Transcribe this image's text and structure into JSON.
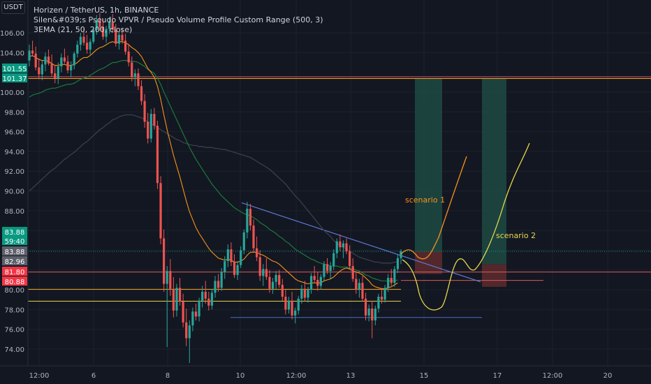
{
  "header": {
    "currency_button": "USDT",
    "title": "Horizen / TetherUS, 1h, BINANCE",
    "indicator_1": "Silen&#039;s Pseudo VPVR / Pseudo Volume Profile Custom Range (500, 3)",
    "indicator_2": "3EMA (21, 50, 200, close)"
  },
  "colors": {
    "background": "#131722",
    "grid": "#1e222d",
    "up": "#26a69a",
    "down": "#ef5350",
    "ema21": "#f7931a",
    "ema50": "#1b7a3a",
    "ema200": "#2a2e39",
    "trendline": "#5b7bd6",
    "support_blue": "#4a6fbf",
    "level_orange": "#f5a623",
    "level_yellow": "#e8d84a",
    "level_red": "#e05a5a",
    "zone_green": "#1e4a43",
    "zone_red": "#5a2a2e"
  },
  "chart_data": {
    "type": "candlestick",
    "symbol": "Horizen / TetherUS",
    "interval": "1h",
    "exchange": "BINANCE",
    "ylim": [
      72.5,
      108.0
    ],
    "y_ticks": [
      74.0,
      76.0,
      78.0,
      80.0,
      82.0,
      84.0,
      86.0,
      88.0,
      90.0,
      92.0,
      94.0,
      96.0,
      98.0,
      100.0,
      104.0,
      106.0
    ],
    "x_tick_labels": [
      "12:00",
      "6",
      "8",
      "10",
      "12:00",
      "13",
      "15",
      "17",
      "12:00",
      "20"
    ],
    "price_labels": [
      {
        "text": "101.55",
        "value": 101.55,
        "color": "#089981"
      },
      {
        "text": "101.37",
        "value": 101.37,
        "color": "#089981"
      },
      {
        "text": "83.88",
        "value": 83.88,
        "color": "#089981"
      },
      {
        "text": "59:40",
        "value": 83.0,
        "color": "#089981"
      },
      {
        "text": "83.88",
        "value": 83.88,
        "color": "#5d606b",
        "offset": 1
      },
      {
        "text": "82.96",
        "value": 82.96,
        "color": "#5d606b"
      },
      {
        "text": "81.80",
        "value": 81.8,
        "color": "#f23645"
      },
      {
        "text": "80.88",
        "value": 80.88,
        "color": "#f23645"
      }
    ],
    "horizontal_levels": [
      {
        "value": 101.55,
        "color": "#e05a5a"
      },
      {
        "value": 101.37,
        "color": "#f5a623"
      },
      {
        "value": 81.8,
        "color": "#e05a5a"
      },
      {
        "value": 80.05,
        "color": "#f5a623"
      },
      {
        "value": 78.85,
        "color": "#e8d84a"
      }
    ],
    "ohlc": [
      [
        103.2,
        104.8,
        102.6,
        104.2
      ],
      [
        104.2,
        105.2,
        103.6,
        103.9
      ],
      [
        103.9,
        104.6,
        102.2,
        102.5
      ],
      [
        102.5,
        103.4,
        101.3,
        101.8
      ],
      [
        101.8,
        103.2,
        101.2,
        102.8
      ],
      [
        102.8,
        104.0,
        102.1,
        103.6
      ],
      [
        103.6,
        104.3,
        102.7,
        102.9
      ],
      [
        102.9,
        103.8,
        101.6,
        101.9
      ],
      [
        101.9,
        102.7,
        100.9,
        101.4
      ],
      [
        101.4,
        103.0,
        100.8,
        102.6
      ],
      [
        102.6,
        103.9,
        102.0,
        103.5
      ],
      [
        103.5,
        104.4,
        102.9,
        103.1
      ],
      [
        103.1,
        103.7,
        101.9,
        102.2
      ],
      [
        102.2,
        103.1,
        101.5,
        102.7
      ],
      [
        102.7,
        104.1,
        102.3,
        103.9
      ],
      [
        103.9,
        105.2,
        103.5,
        104.8
      ],
      [
        104.8,
        106.0,
        104.2,
        105.6
      ],
      [
        105.6,
        106.4,
        104.7,
        105.0
      ],
      [
        105.0,
        105.8,
        103.9,
        104.3
      ],
      [
        104.3,
        105.4,
        103.8,
        105.1
      ],
      [
        105.1,
        106.6,
        104.9,
        106.3
      ],
      [
        106.3,
        107.8,
        105.8,
        107.2
      ],
      [
        107.2,
        108.0,
        106.2,
        106.6
      ],
      [
        106.6,
        107.4,
        105.3,
        105.6
      ],
      [
        105.6,
        106.7,
        105.0,
        106.4
      ],
      [
        106.4,
        107.6,
        105.9,
        107.1
      ],
      [
        107.1,
        107.9,
        106.0,
        106.3
      ],
      [
        106.3,
        106.9,
        104.6,
        104.9
      ],
      [
        104.9,
        106.1,
        104.3,
        105.8
      ],
      [
        105.8,
        106.5,
        104.9,
        105.2
      ],
      [
        105.2,
        105.9,
        103.8,
        104.1
      ],
      [
        104.1,
        104.9,
        102.6,
        103.0
      ],
      [
        103.0,
        103.6,
        101.1,
        101.5
      ],
      [
        101.5,
        102.3,
        100.6,
        101.9
      ],
      [
        101.9,
        102.4,
        100.2,
        100.6
      ],
      [
        100.6,
        101.2,
        98.7,
        99.1
      ],
      [
        99.1,
        99.8,
        96.4,
        97.0
      ],
      [
        97.0,
        97.9,
        94.8,
        95.3
      ],
      [
        95.3,
        98.3,
        94.9,
        97.8
      ],
      [
        97.8,
        98.4,
        96.2,
        96.6
      ],
      [
        96.6,
        97.1,
        90.2,
        90.8
      ],
      [
        90.8,
        91.5,
        84.6,
        85.2
      ],
      [
        85.2,
        86.1,
        79.8,
        80.6
      ],
      [
        80.6,
        82.4,
        74.2,
        81.9
      ],
      [
        81.9,
        83.1,
        79.4,
        80.1
      ],
      [
        80.1,
        81.3,
        77.2,
        77.9
      ],
      [
        77.9,
        80.6,
        77.3,
        80.2
      ],
      [
        80.2,
        81.2,
        78.4,
        78.8
      ],
      [
        78.8,
        79.6,
        76.2,
        76.7
      ],
      [
        76.7,
        78.1,
        74.3,
        75.1
      ],
      [
        75.1,
        76.9,
        72.6,
        76.4
      ],
      [
        76.4,
        78.2,
        75.8,
        77.8
      ],
      [
        77.8,
        78.6,
        76.9,
        77.3
      ],
      [
        77.3,
        79.2,
        76.8,
        78.9
      ],
      [
        78.9,
        80.4,
        78.2,
        79.8
      ],
      [
        79.8,
        80.9,
        78.6,
        79.1
      ],
      [
        79.1,
        79.8,
        77.9,
        78.4
      ],
      [
        78.4,
        80.1,
        78.0,
        79.7
      ],
      [
        79.7,
        81.4,
        79.2,
        80.9
      ],
      [
        80.9,
        81.6,
        79.8,
        80.2
      ],
      [
        80.2,
        82.2,
        79.9,
        81.8
      ],
      [
        81.8,
        83.4,
        81.1,
        82.9
      ],
      [
        82.9,
        84.6,
        82.3,
        84.1
      ],
      [
        84.1,
        84.8,
        82.4,
        82.8
      ],
      [
        82.8,
        83.6,
        81.2,
        81.5
      ],
      [
        81.5,
        82.9,
        81.0,
        82.5
      ],
      [
        82.5,
        84.4,
        82.2,
        84.0
      ],
      [
        84.0,
        86.1,
        83.6,
        85.8
      ],
      [
        85.8,
        88.9,
        85.2,
        88.2
      ],
      [
        88.2,
        88.7,
        86.0,
        86.5
      ],
      [
        86.5,
        87.1,
        83.8,
        84.2
      ],
      [
        84.2,
        85.4,
        82.9,
        83.3
      ],
      [
        83.3,
        84.0,
        80.9,
        81.4
      ],
      [
        81.4,
        82.6,
        80.4,
        82.1
      ],
      [
        82.1,
        83.2,
        81.0,
        81.3
      ],
      [
        81.3,
        82.0,
        79.7,
        80.1
      ],
      [
        80.1,
        81.2,
        79.6,
        80.8
      ],
      [
        80.8,
        81.9,
        80.1,
        81.5
      ],
      [
        81.5,
        82.0,
        80.2,
        80.5
      ],
      [
        80.5,
        81.1,
        78.9,
        79.3
      ],
      [
        79.3,
        80.0,
        77.5,
        78.0
      ],
      [
        78.0,
        79.3,
        77.6,
        78.9
      ],
      [
        78.9,
        79.8,
        77.0,
        77.4
      ],
      [
        77.4,
        78.2,
        76.6,
        77.9
      ],
      [
        77.9,
        79.4,
        77.5,
        79.1
      ],
      [
        79.1,
        80.5,
        78.6,
        80.1
      ],
      [
        80.1,
        80.9,
        78.8,
        79.2
      ],
      [
        79.2,
        80.3,
        78.7,
        80.0
      ],
      [
        80.0,
        81.7,
        79.6,
        81.4
      ],
      [
        81.4,
        82.4,
        80.7,
        81.0
      ],
      [
        81.0,
        81.8,
        79.9,
        80.4
      ],
      [
        80.4,
        81.6,
        80.0,
        81.3
      ],
      [
        81.3,
        82.9,
        80.9,
        82.6
      ],
      [
        82.6,
        83.2,
        81.6,
        81.9
      ],
      [
        81.9,
        82.8,
        81.1,
        82.4
      ],
      [
        82.4,
        84.1,
        82.0,
        83.7
      ],
      [
        83.7,
        85.2,
        83.2,
        84.9
      ],
      [
        84.9,
        85.6,
        83.9,
        84.3
      ],
      [
        84.3,
        85.0,
        83.2,
        84.7
      ],
      [
        84.7,
        85.2,
        83.6,
        83.9
      ],
      [
        83.9,
        84.5,
        82.1,
        82.4
      ],
      [
        82.4,
        83.2,
        80.8,
        81.1
      ],
      [
        81.1,
        81.9,
        79.6,
        80.0
      ],
      [
        80.0,
        81.1,
        79.2,
        80.7
      ],
      [
        80.7,
        81.4,
        78.8,
        79.1
      ],
      [
        79.1,
        79.7,
        76.9,
        77.4
      ],
      [
        77.4,
        78.5,
        76.8,
        78.1
      ],
      [
        78.1,
        78.9,
        75.1,
        76.9
      ],
      [
        76.9,
        78.4,
        76.4,
        78.1
      ],
      [
        78.1,
        79.6,
        77.7,
        79.3
      ],
      [
        79.3,
        80.2,
        78.6,
        79.0
      ],
      [
        79.0,
        80.5,
        78.7,
        80.2
      ],
      [
        80.2,
        81.6,
        79.8,
        81.2
      ],
      [
        81.2,
        82.1,
        80.4,
        80.7
      ],
      [
        80.7,
        82.4,
        80.3,
        82.1
      ],
      [
        82.1,
        83.6,
        81.7,
        83.2
      ],
      [
        83.2,
        84.1,
        82.6,
        83.9
      ]
    ],
    "ema_21": [
      103.6,
      103.7,
      103.5,
      103.3,
      103.2,
      103.2,
      103.1,
      102.9,
      102.7,
      102.7,
      102.8,
      102.8,
      102.7,
      102.7,
      102.8,
      103.0,
      103.3,
      103.5,
      103.5,
      103.7,
      104.0,
      104.3,
      104.5,
      104.6,
      104.8,
      105.0,
      105.1,
      105.0,
      105.1,
      105.1,
      105.0,
      104.8,
      104.5,
      104.3,
      104.0,
      103.6,
      103.0,
      102.4,
      102.0,
      101.5,
      100.6,
      99.3,
      97.7,
      96.2,
      94.9,
      93.6,
      92.5,
      91.4,
      90.2,
      89.0,
      87.9,
      87.1,
      86.3,
      85.7,
      85.2,
      84.7,
      84.2,
      83.8,
      83.5,
      83.2,
      83.1,
      83.0,
      83.1,
      83.0,
      82.8,
      82.8,
      82.9,
      83.1,
      83.5,
      83.8,
      83.8,
      83.8,
      83.6,
      83.5,
      83.3,
      83.1,
      82.9,
      82.8,
      82.6,
      82.3,
      82.0,
      81.7,
      81.4,
      81.1,
      80.9,
      80.8,
      80.7,
      80.6,
      80.7,
      80.7,
      80.7,
      80.7,
      80.9,
      81.0,
      81.1,
      81.3,
      81.6,
      81.9,
      82.1,
      82.2,
      82.1,
      81.9,
      81.8,
      81.7,
      81.5,
      81.2,
      80.9,
      80.5,
      80.3,
      80.2,
      80.1,
      80.1,
      80.2,
      80.3,
      80.5,
      80.7
    ],
    "ema_50": [
      99.5,
      99.7,
      99.8,
      99.9,
      100.0,
      100.2,
      100.3,
      100.4,
      100.4,
      100.5,
      100.6,
      100.7,
      100.8,
      100.8,
      100.9,
      101.1,
      101.3,
      101.4,
      101.5,
      101.7,
      101.9,
      102.1,
      102.3,
      102.4,
      102.6,
      102.8,
      103.0,
      103.0,
      103.1,
      103.2,
      103.2,
      103.2,
      103.1,
      103.1,
      103.0,
      102.8,
      102.6,
      102.3,
      102.1,
      101.9,
      101.4,
      100.8,
      100.0,
      99.3,
      98.6,
      97.9,
      97.2,
      96.5,
      95.8,
      95.1,
      94.4,
      93.8,
      93.2,
      92.7,
      92.2,
      91.7,
      91.2,
      90.7,
      90.3,
      89.9,
      89.5,
      89.2,
      88.9,
      88.6,
      88.3,
      88.1,
      87.9,
      87.7,
      87.6,
      87.5,
      87.3,
      87.1,
      86.8,
      86.6,
      86.4,
      86.1,
      85.9,
      85.7,
      85.4,
      85.2,
      84.9,
      84.7,
      84.4,
      84.1,
      83.9,
      83.7,
      83.5,
      83.3,
      83.1,
      83.0,
      82.8,
      82.7,
      82.6,
      82.5,
      82.4,
      82.4,
      82.4,
      82.3,
      82.3,
      82.3,
      82.2,
      82.1,
      82.0,
      81.9,
      81.7,
      81.5,
      81.4,
      81.2,
      81.1,
      81.0,
      80.9,
      80.9,
      80.9,
      80.9,
      80.9,
      81.0
    ],
    "ema_200": [
      90.0,
      90.3,
      90.6,
      90.9,
      91.2,
      91.5,
      91.8,
      92.1,
      92.3,
      92.6,
      92.9,
      93.2,
      93.4,
      93.7,
      93.9,
      94.2,
      94.5,
      94.8,
      95.0,
      95.3,
      95.6,
      95.9,
      96.2,
      96.4,
      96.7,
      96.9,
      97.2,
      97.3,
      97.5,
      97.6,
      97.7,
      97.7,
      97.7,
      97.6,
      97.5,
      97.4,
      97.2,
      97.0,
      96.8,
      96.6,
      96.4,
      96.2,
      96.0,
      95.8,
      95.6,
      95.4,
      95.2,
      95.1,
      94.9,
      94.8,
      94.7,
      94.6,
      94.6,
      94.5,
      94.5,
      94.4,
      94.4,
      94.4,
      94.3,
      94.3,
      94.2,
      94.2,
      94.1,
      94.0,
      93.9,
      93.8,
      93.7,
      93.6,
      93.5,
      93.4,
      93.2,
      93.0,
      92.8,
      92.6,
      92.4,
      92.2,
      91.9,
      91.6,
      91.3,
      91.0,
      90.7,
      90.3,
      89.9,
      89.5,
      89.2,
      88.8,
      88.4,
      88.0,
      87.6,
      87.2,
      86.8,
      86.4,
      86.0,
      85.7,
      85.4,
      85.0,
      84.7,
      84.5,
      84.3,
      84.1,
      83.9,
      83.7,
      83.5,
      83.3,
      83.2,
      83.1,
      83.0,
      82.9,
      82.8,
      82.8,
      82.7,
      82.7,
      82.7,
      82.7,
      82.8,
      82.8
    ],
    "annotations": [
      {
        "text": "scenario 1",
        "color": "#f7931a"
      },
      {
        "text": "scenario 2",
        "color": "#e8d84a"
      }
    ]
  }
}
